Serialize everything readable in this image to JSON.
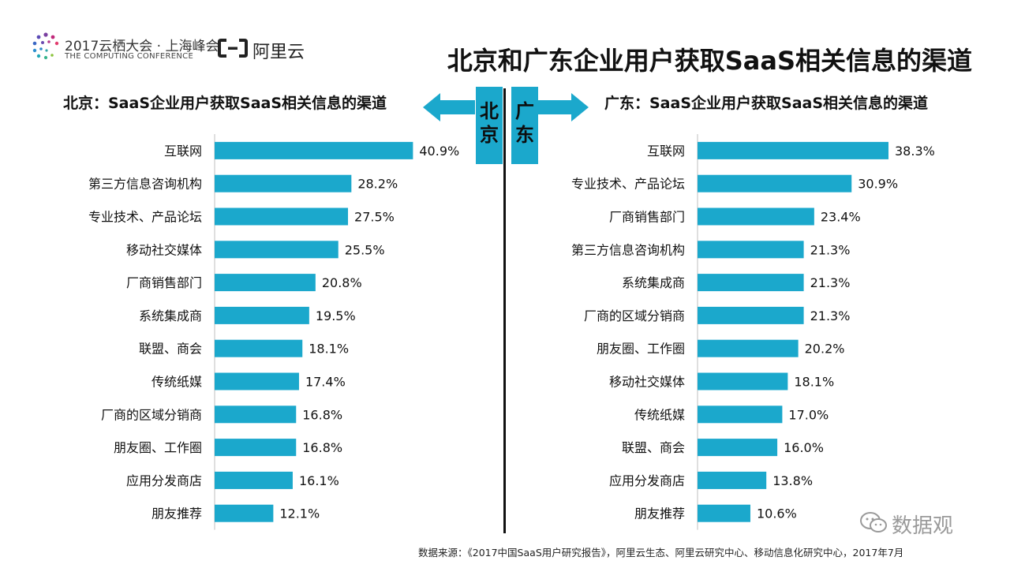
{
  "header": {
    "conference_line1": "2017云栖大会 · 上海峰会",
    "conference_line2": "THE COMPUTING CONFERENCE",
    "aliyun_logo_text": "阿里云",
    "title": "北京和广东企业用户获取SaaS相关信息的渠道"
  },
  "left_panel": {
    "title": "北京：SaaS企业用户获取SaaS相关信息的渠道",
    "city_line1": "北",
    "city_line2": "京"
  },
  "right_panel": {
    "title": "广东：SaaS企业用户获取SaaS相关信息的渠道",
    "city_line1": "广",
    "city_line2": "东"
  },
  "footer": {
    "source": "数据来源：《2017中国SaaS用户研究报告》，阿里云生态、阿里云研究中心、移动信息化研究中心，2017年7月",
    "wechat_label": "数据观"
  },
  "colors": {
    "bar": "#1ba8cc",
    "accent": "#1ba8cc",
    "text": "#111111"
  },
  "chart_data": [
    {
      "type": "bar",
      "orientation": "horizontal",
      "title": "北京：SaaS企业用户获取SaaS相关信息的渠道",
      "categories": [
        "互联网",
        "第三方信息咨询机构",
        "专业技术、产品论坛",
        "移动社交媒体",
        "厂商销售部门",
        "系统集成商",
        "联盟、商会",
        "传统纸媒",
        "厂商的区域分销商",
        "朋友圈、工作圈",
        "应用分发商店",
        "朋友推荐"
      ],
      "values": [
        40.9,
        28.2,
        27.5,
        25.5,
        20.8,
        19.5,
        18.1,
        17.4,
        16.8,
        16.8,
        16.1,
        12.1
      ],
      "value_labels": [
        "40.9%",
        "28.2%",
        "27.5%",
        "25.5%",
        "20.8%",
        "19.5%",
        "18.1%",
        "17.4%",
        "16.8%",
        "16.8%",
        "16.1%",
        "12.1%"
      ],
      "unit": "%",
      "xlim": [
        0,
        41
      ],
      "grid": false,
      "legend": "none"
    },
    {
      "type": "bar",
      "orientation": "horizontal",
      "title": "广东：SaaS企业用户获取SaaS相关信息的渠道",
      "categories": [
        "互联网",
        "专业技术、产品论坛",
        "厂商销售部门",
        "第三方信息咨询机构",
        "系统集成商",
        "厂商的区域分销商",
        "朋友圈、工作圈",
        "移动社交媒体",
        "传统纸媒",
        "联盟、商会",
        "应用分发商店",
        "朋友推荐"
      ],
      "values": [
        38.3,
        30.9,
        23.4,
        21.3,
        21.3,
        21.3,
        20.2,
        18.1,
        17.0,
        16.0,
        13.8,
        10.6
      ],
      "value_labels": [
        "38.3%",
        "30.9%",
        "23.4%",
        "21.3%",
        "21.3%",
        "21.3%",
        "20.2%",
        "18.1%",
        "17.0%",
        "16.0%",
        "13.8%",
        "10.6%"
      ],
      "unit": "%",
      "xlim": [
        0,
        38.3
      ],
      "grid": false,
      "legend": "none"
    }
  ]
}
